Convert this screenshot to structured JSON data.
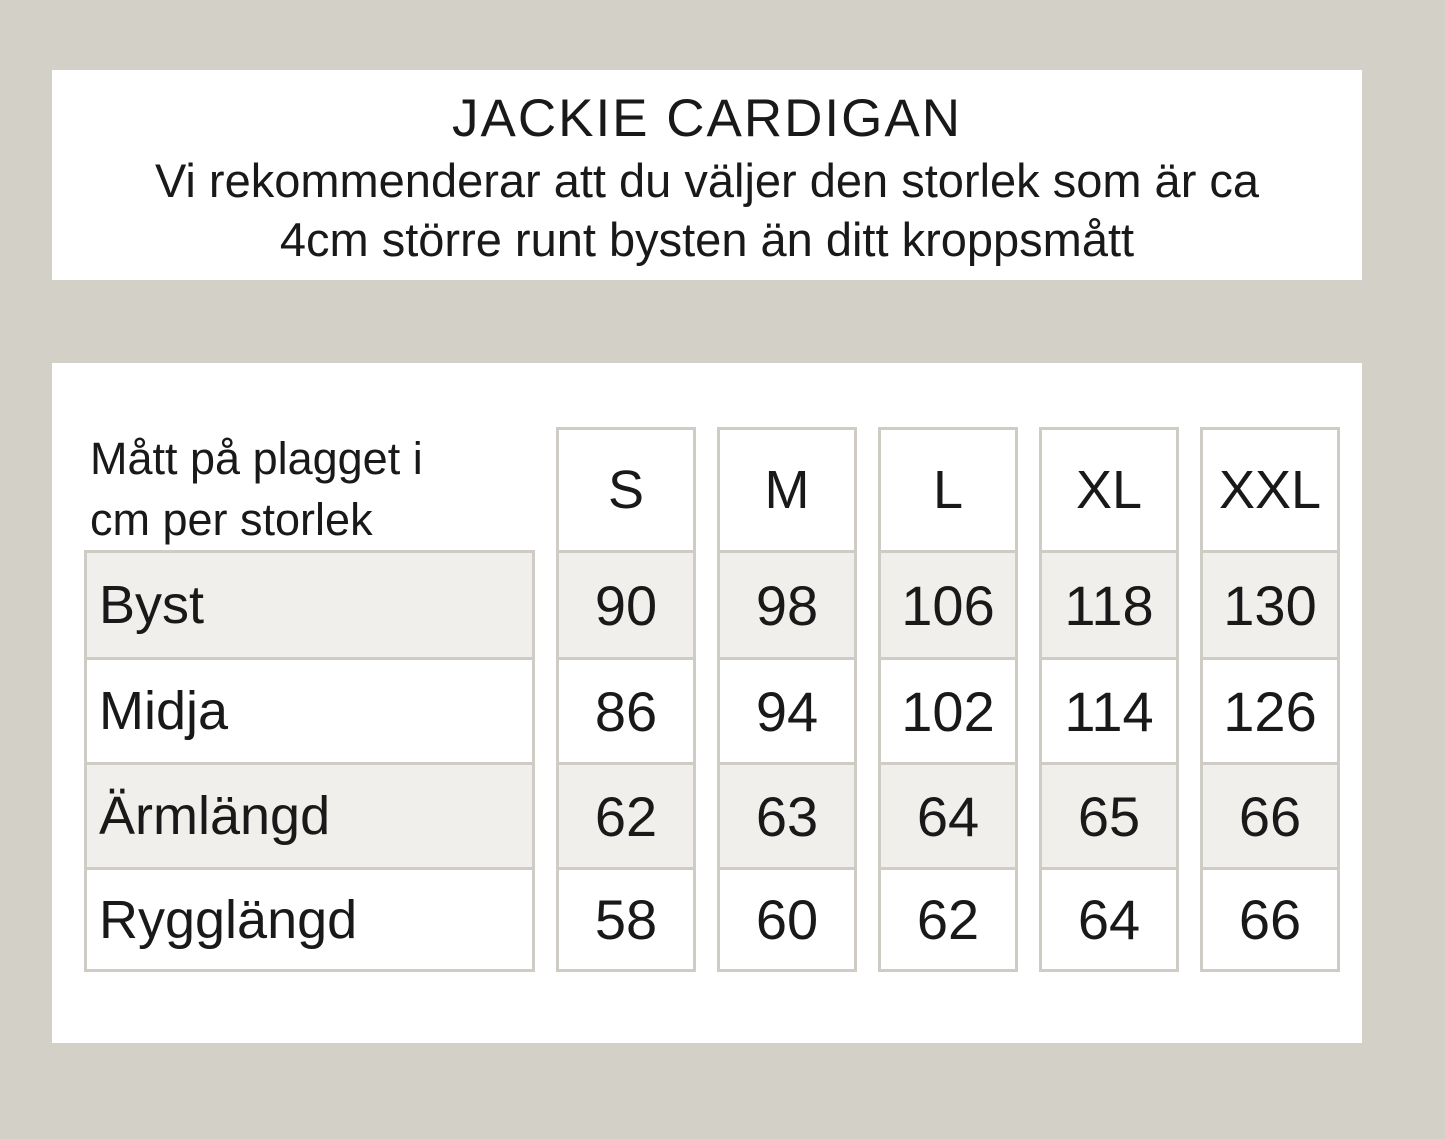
{
  "page": {
    "background_color": "#d3d0c8",
    "panel_color": "#ffffff",
    "alt_row_color": "#f0efec",
    "border_color": "#cfccc5",
    "text_color": "#191919"
  },
  "header": {
    "title": "JACKIE CARDIGAN",
    "subtitle_line1": "Vi rekommenderar att du väljer den storlek som är ca",
    "subtitle_line2": "4cm större runt bysten än ditt kroppsmått"
  },
  "size_table": {
    "corner_label_line1": "Mått på plagget i",
    "corner_label_line2": "cm per storlek",
    "columns": [
      "S",
      "M",
      "L",
      "XL",
      "XXL"
    ],
    "rows": [
      {
        "label": "Byst",
        "values": [
          "90",
          "98",
          "106",
          "118",
          "130"
        ]
      },
      {
        "label": "Midja",
        "values": [
          "86",
          "94",
          "102",
          "114",
          "126"
        ]
      },
      {
        "label": "Ärmlängd",
        "values": [
          "62",
          "63",
          "64",
          "65",
          "66"
        ]
      },
      {
        "label": "Rygglängd",
        "values": [
          "58",
          "60",
          "62",
          "64",
          "66"
        ]
      }
    ]
  }
}
